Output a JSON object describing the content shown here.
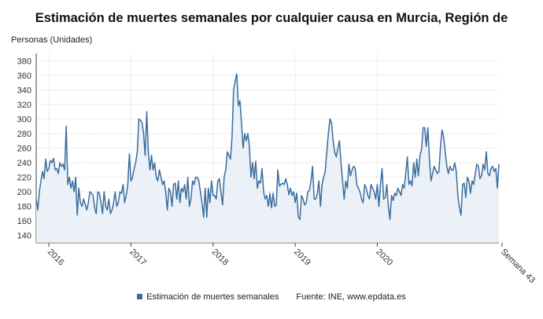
{
  "title": "Estimación de muertes semanales por cualquier causa en Murcia, Región de",
  "colors": {
    "series": "#3a6e9e",
    "area": "#e6edf5",
    "grid": "#c9c9c9",
    "axis": "#444444"
  },
  "legend": {
    "series_label": "Estimación de muertes semanales",
    "source": "Fuente: INE, www.epdata.es"
  },
  "chart_data": {
    "type": "area",
    "title": "Estimación de muertes semanales por cualquier causa en Murcia, Región de",
    "ylabel": "Personas (Unidades)",
    "xlabel": "",
    "ylim": [
      130,
      390
    ],
    "yticks": [
      140,
      160,
      180,
      200,
      220,
      240,
      260,
      280,
      300,
      320,
      340,
      360,
      380
    ],
    "xticks": [
      "2016",
      "2017",
      "2018",
      "2019",
      "2020",
      "Semana 43"
    ],
    "grid": true,
    "legend_position": "bottom",
    "series": [
      {
        "name": "Estimación de muertes semanales",
        "values": [
          190,
          175,
          200,
          215,
          228,
          218,
          245,
          228,
          232,
          243,
          240,
          246,
          230,
          232,
          225,
          240,
          235,
          238,
          230,
          290,
          210,
          220,
          205,
          215,
          200,
          220,
          168,
          205,
          185,
          180,
          190,
          183,
          175,
          185,
          200,
          198,
          195,
          178,
          170,
          200,
          198,
          185,
          170,
          200,
          180,
          175,
          190,
          170,
          175,
          185,
          200,
          180,
          185,
          200,
          198,
          210,
          185,
          195,
          210,
          252,
          215,
          220,
          232,
          240,
          255,
          300,
          298,
          295,
          280,
          250,
          310,
          255,
          230,
          250,
          230,
          240,
          220,
          215,
          230,
          220,
          210,
          215,
          200,
          175,
          205,
          200,
          180,
          210,
          212,
          190,
          215,
          185,
          205,
          200,
          210,
          190,
          220,
          180,
          190,
          215,
          210,
          220,
          220,
          215,
          200,
          185,
          165,
          205,
          165,
          205,
          185,
          215,
          195,
          195,
          190,
          215,
          218,
          200,
          182,
          220,
          230,
          255,
          250,
          245,
          275,
          340,
          352,
          362,
          318,
          325,
          295,
          260,
          280,
          270,
          280,
          262,
          220,
          240,
          218,
          242,
          205,
          215,
          212,
          232,
          200,
          190,
          195,
          180,
          198,
          178,
          198,
          180,
          182,
          230,
          208,
          210,
          212,
          210,
          218,
          210,
          196,
          205,
          195,
          200,
          185,
          198,
          165,
          162,
          195,
          190,
          182,
          185,
          200,
          202,
          215,
          235,
          190,
          190,
          198,
          215,
          180,
          210,
          220,
          228,
          255,
          280,
          300,
          295,
          270,
          255,
          248,
          260,
          270,
          240,
          215,
          190,
          215,
          205,
          238,
          222,
          230,
          235,
          232,
          210,
          205,
          200,
          190,
          185,
          210,
          205,
          195,
          190,
          210,
          205,
          200,
          190,
          210,
          180,
          210,
          232,
          190,
          192,
          210,
          180,
          162,
          195,
          188,
          198,
          195,
          205,
          200,
          195,
          210,
          205,
          225,
          248,
          210,
          215,
          208,
          240,
          220,
          245,
          222,
          250,
          258,
          288,
          288,
          262,
          288,
          245,
          215,
          225,
          235,
          230,
          225,
          228,
          262,
          285,
          275,
          255,
          235,
          225,
          235,
          230,
          230,
          240,
          228,
          195,
          178,
          168,
          210,
          212,
          192,
          220,
          215,
          198,
          215,
          210,
          225,
          238,
          235,
          218,
          222,
          238,
          230,
          255,
          225,
          222,
          232,
          235,
          228,
          232,
          205,
          238
        ]
      }
    ]
  }
}
